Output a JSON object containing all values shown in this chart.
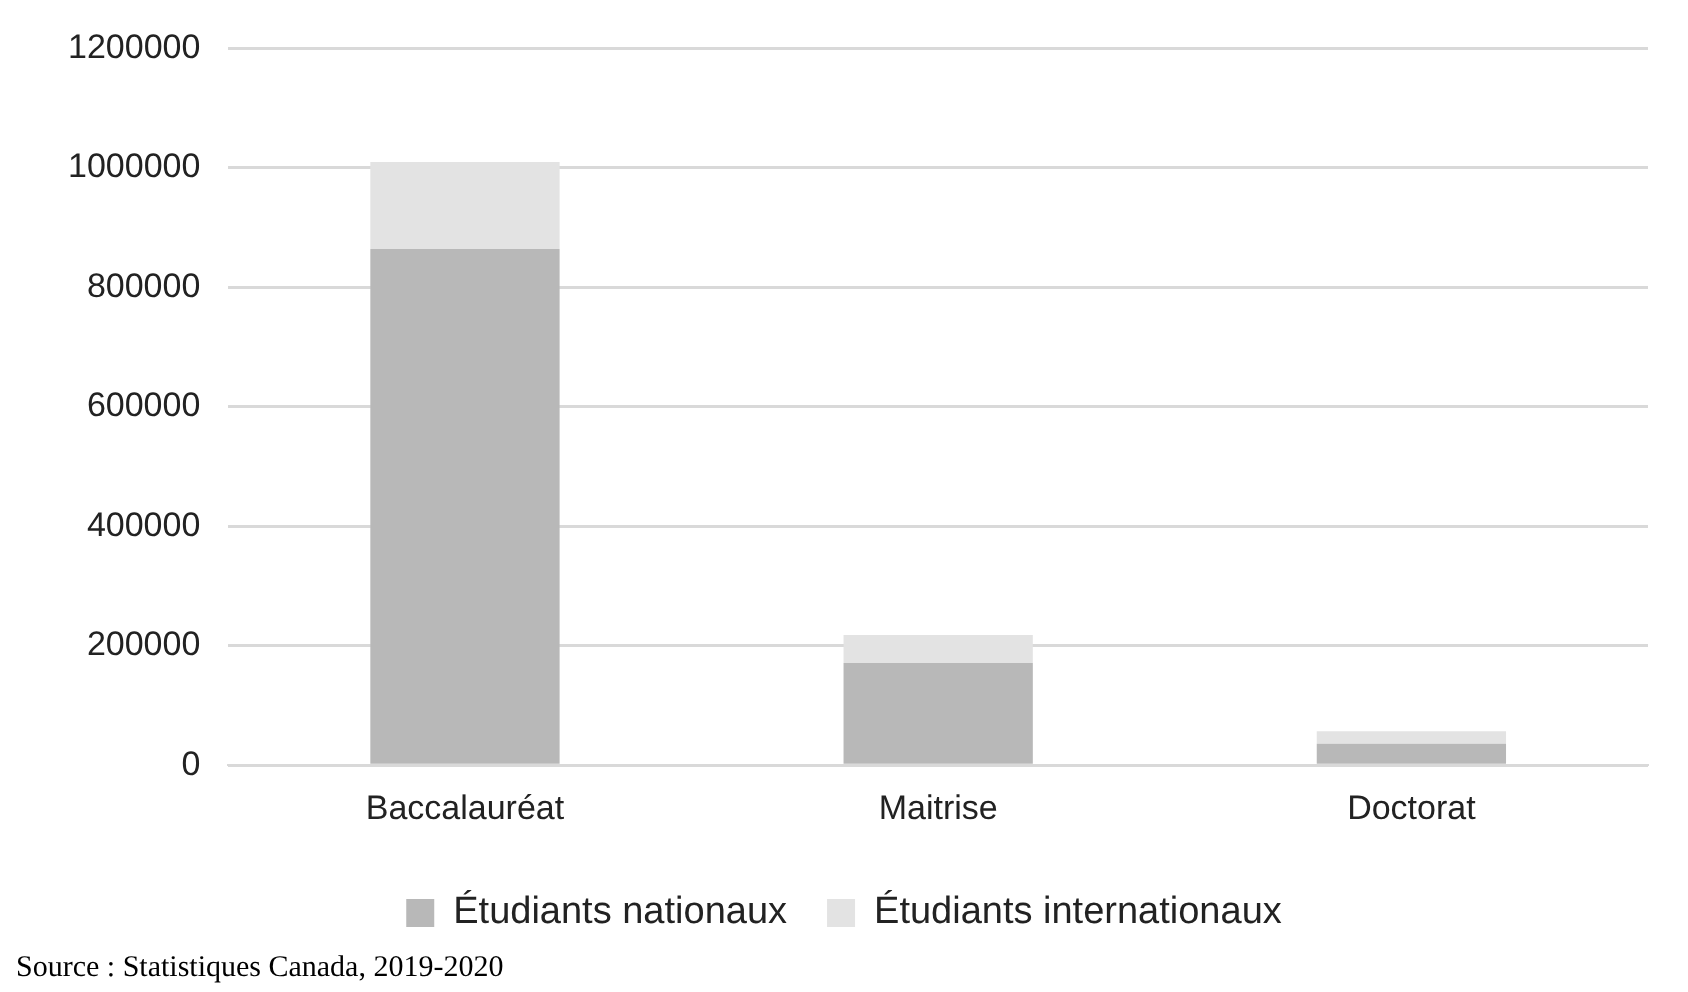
{
  "chart_data": {
    "type": "bar",
    "stacked": true,
    "categories": [
      "Baccalauréat",
      "Maitrise",
      "Doctorat"
    ],
    "series": [
      {
        "name": "Étudiants nationaux",
        "color": "#b8b8b8",
        "values": [
          864000,
          171000,
          36000
        ]
      },
      {
        "name": "Étudiants internationaux",
        "color": "#e3e3e3",
        "values": [
          146000,
          47000,
          21000
        ]
      }
    ],
    "ylim": [
      0,
      1200000
    ],
    "yticks": [
      0,
      200000,
      400000,
      600000,
      800000,
      1000000,
      1200000
    ],
    "grid": "y",
    "legend": "bottom",
    "annotations": [
      "Source : Statistiques Canada, 2019-2020"
    ]
  }
}
